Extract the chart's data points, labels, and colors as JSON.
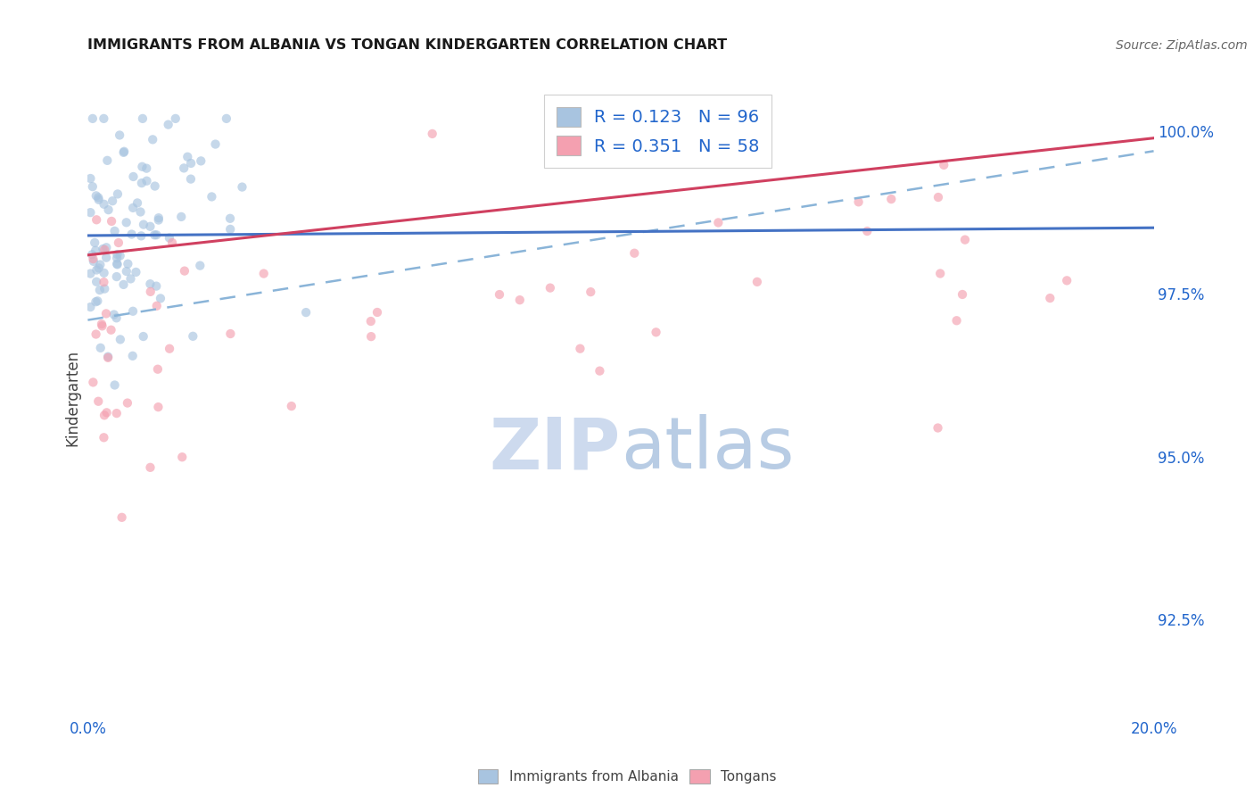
{
  "title": "IMMIGRANTS FROM ALBANIA VS TONGAN KINDERGARTEN CORRELATION CHART",
  "source": "Source: ZipAtlas.com",
  "ylabel": "Kindergarten",
  "ytick_labels": [
    "92.5%",
    "95.0%",
    "97.5%",
    "100.0%"
  ],
  "ytick_values": [
    0.925,
    0.95,
    0.975,
    1.0
  ],
  "xlim": [
    0.0,
    0.2
  ],
  "ylim": [
    0.91,
    1.008
  ],
  "legend_albania": {
    "R": "0.123",
    "N": "96"
  },
  "legend_tongan": {
    "R": "0.351",
    "N": "58"
  },
  "albania_color": "#a8c4e0",
  "tongan_color": "#f4a0b0",
  "albania_line_color": "#4472c4",
  "tongan_line_color": "#d04060",
  "dashed_line_color": "#8ab4d8",
  "grid_color": "#e0e8f0",
  "watermark_zip_color": "#c8d8f0",
  "watermark_atlas_color": "#c0d0e8",
  "title_color": "#1a1a1a",
  "source_color": "#666666",
  "axis_label_color": "#2266cc",
  "tick_label_color": "#444444",
  "background_color": "#ffffff",
  "scatter_alpha": 0.65,
  "scatter_size": 55
}
